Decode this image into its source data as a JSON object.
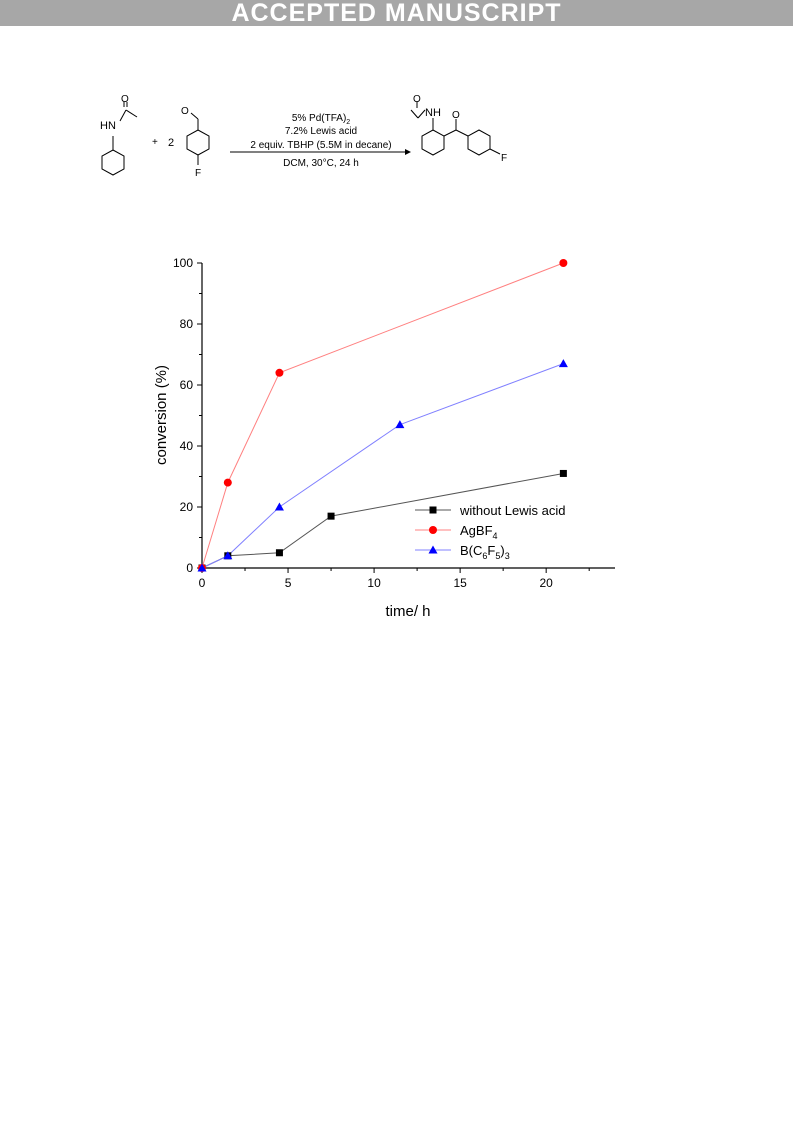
{
  "banner": {
    "text": "ACCEPTED MANUSCRIPT"
  },
  "scheme": {
    "reactant1_group": "HN",
    "reactant1_o": "O",
    "plus": "+",
    "equiv": "2",
    "reactant2_o": "O",
    "reactant2_f": "F",
    "conditions": {
      "line1": "5% Pd(TFA)",
      "line1_sub": "2",
      "line2": "7.2% Lewis acid",
      "line3": "2 equiv. TBHP (5.5M in decane)",
      "line4": "DCM, 30°C, 24 h"
    },
    "product_o1": "O",
    "product_nh": "NH",
    "product_o2": "O",
    "product_f": "F"
  },
  "colors": {
    "banner": "#a7a7a7",
    "series_black": "#000000",
    "series_red": "#ff0000",
    "series_blue": "#0000ff",
    "line_red": "#ff8080",
    "line_blue": "#8080ff",
    "line_black": "#555555"
  },
  "chart_data": {
    "type": "line",
    "xlabel": "time/ h",
    "ylabel": "conversion (%)",
    "xlim": [
      0,
      24
    ],
    "ylim": [
      0,
      100
    ],
    "x_ticks": [
      0,
      5,
      10,
      15,
      20
    ],
    "y_ticks": [
      0,
      20,
      40,
      60,
      80,
      100
    ],
    "grid": false,
    "legend_position": "bottom-right",
    "series": [
      {
        "name": "without Lewis acid",
        "marker": "square",
        "color": "#000000",
        "x": [
          0,
          1.5,
          4.5,
          7.5,
          21
        ],
        "y": [
          0,
          4,
          5,
          17,
          31
        ]
      },
      {
        "name": "AgBF",
        "name_sub": "4",
        "marker": "circle",
        "color": "#ff0000",
        "x": [
          0,
          1.5,
          4.5,
          21
        ],
        "y": [
          0,
          28,
          64,
          100
        ]
      },
      {
        "name": "B(C",
        "name_parts": [
          "B(C",
          "6",
          "F",
          "5",
          ")",
          "3"
        ],
        "marker": "triangle",
        "color": "#0000ff",
        "x": [
          0,
          1.5,
          4.5,
          11.5,
          21
        ],
        "y": [
          0,
          4,
          20,
          47,
          67
        ]
      }
    ]
  }
}
